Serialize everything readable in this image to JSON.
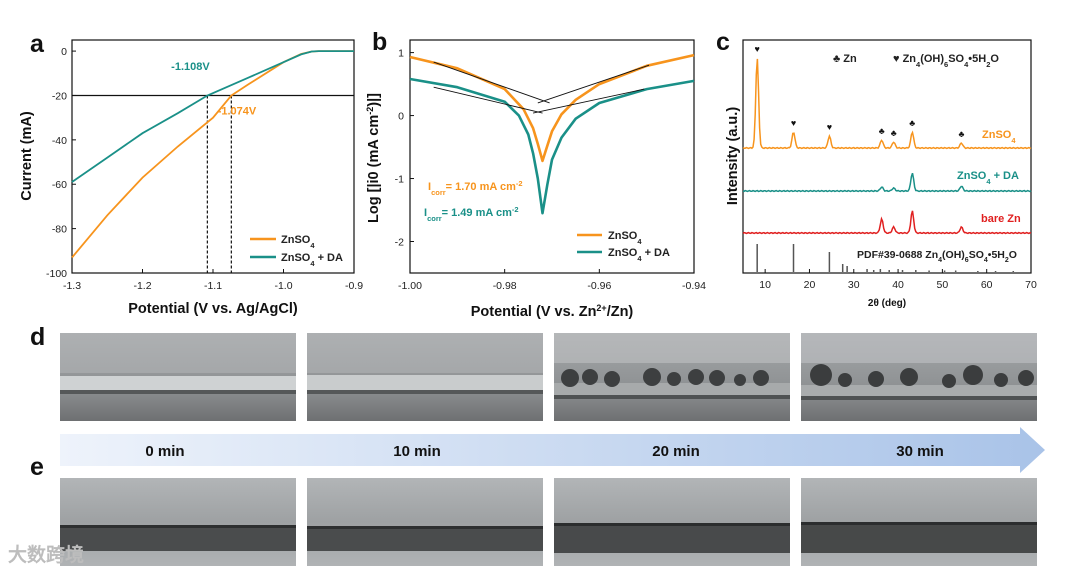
{
  "colors": {
    "orange": "#F7941D",
    "teal": "#1A9088",
    "red": "#E02020",
    "gray": "#555555",
    "arrow_start": "#EEF3FB",
    "arrow_end": "#A9C3E8"
  },
  "panel_labels": {
    "a": "a",
    "b": "b",
    "c": "c",
    "d": "d",
    "e": "e"
  },
  "chart_data": [
    {
      "panel": "a",
      "type": "line",
      "xlabel": "Potential (V vs. Ag/AgCl)",
      "ylabel": "Current (mA)",
      "xlim": [
        -1.3,
        -0.9
      ],
      "ylim": [
        -100,
        5
      ],
      "xticks": [
        -1.3,
        -1.2,
        -1.1,
        -1.0,
        -0.9
      ],
      "xtick_labels": [
        "-1.3",
        "-1.2",
        "-1.1",
        "-1.0",
        "-0.9"
      ],
      "yticks": [
        0,
        -20,
        -40,
        -60,
        -80,
        -100
      ],
      "ytick_labels": [
        "0",
        "-20",
        "-40",
        "-60",
        "-80",
        "-100"
      ],
      "series": [
        {
          "name": "ZnSO4",
          "color": "orange",
          "x": [
            -1.3,
            -1.25,
            -1.2,
            -1.15,
            -1.1,
            -1.074,
            -1.05,
            -1.0,
            -0.975,
            -0.96,
            -0.95,
            -0.93,
            -0.9
          ],
          "y": [
            -93,
            -74,
            -57,
            -43,
            -30,
            -20,
            -15,
            -5,
            -1.3,
            -0.2,
            0,
            0,
            0
          ]
        },
        {
          "name": "ZnSO4 + DA",
          "color": "teal",
          "x": [
            -1.3,
            -1.25,
            -1.2,
            -1.15,
            -1.108,
            -1.05,
            -1.0,
            -0.975,
            -0.96,
            -0.95,
            -0.93,
            -0.9
          ],
          "y": [
            -59,
            -48,
            -37,
            -28,
            -20,
            -12,
            -5,
            -1.5,
            -0.2,
            0,
            0,
            0
          ]
        }
      ],
      "reference_line_y": -20,
      "dashed_markers_x": [
        -1.108,
        -1.074
      ],
      "annotations": [
        {
          "text": "-1.108V",
          "color": "teal",
          "x": -1.132,
          "y": -8.5
        },
        {
          "text": "-1.074V",
          "color": "orange",
          "x": -1.066,
          "y": -28.5
        }
      ],
      "legend": {
        "position": "bottom-right",
        "entries": [
          "ZnSO4",
          "ZnSO4 + DA"
        ]
      }
    },
    {
      "panel": "b",
      "type": "line",
      "xlabel": "Potential (V vs. Zn2+/Zn)",
      "ylabel": "Log [|i0 (mA cm-2)|]",
      "xlim": [
        -1.0,
        -0.94
      ],
      "ylim": [
        -2.5,
        1.2
      ],
      "xticks": [
        -1.0,
        -0.98,
        -0.96,
        -0.94
      ],
      "xtick_labels": [
        "-1.00",
        "-0.98",
        "-0.96",
        "-0.94"
      ],
      "yticks": [
        1,
        0,
        -1,
        -2
      ],
      "ytick_labels": [
        "1",
        "0",
        "-1",
        "-2"
      ],
      "series": [
        {
          "name": "ZnSO4",
          "color": "orange",
          "x": [
            -1.0,
            -0.99,
            -0.98,
            -0.976,
            -0.974,
            -0.973,
            -0.972,
            -0.971,
            -0.97,
            -0.968,
            -0.965,
            -0.96,
            -0.95,
            -0.94
          ],
          "y": [
            0.93,
            0.75,
            0.42,
            0.1,
            -0.2,
            -0.45,
            -0.72,
            -0.48,
            -0.25,
            0.02,
            0.25,
            0.5,
            0.79,
            0.96
          ]
        },
        {
          "name": "ZnSO4 + DA",
          "color": "teal",
          "x": [
            -1.0,
            -0.99,
            -0.98,
            -0.977,
            -0.975,
            -0.974,
            -0.973,
            -0.972,
            -0.971,
            -0.97,
            -0.968,
            -0.965,
            -0.96,
            -0.95,
            -0.94
          ],
          "y": [
            0.58,
            0.45,
            0.22,
            0.0,
            -0.3,
            -0.6,
            -1.0,
            -1.55,
            -1.1,
            -0.7,
            -0.35,
            -0.05,
            0.2,
            0.42,
            0.55
          ]
        }
      ],
      "tafel_lines": [
        {
          "x": [
            -0.995,
            -0.9705
          ],
          "y": [
            0.85,
            0.2
          ]
        },
        {
          "x": [
            -0.973,
            -0.9495
          ],
          "y": [
            0.2,
            0.8
          ]
        },
        {
          "x": [
            -0.995,
            -0.972
          ],
          "y": [
            0.45,
            0.04
          ]
        },
        {
          "x": [
            -0.974,
            -0.9505
          ],
          "y": [
            0.04,
            0.42
          ]
        }
      ],
      "annotations": [
        {
          "label": "I",
          "sub": "corr",
          "value": "= 1.70 mA cm",
          "sup": "-2",
          "color": "orange"
        },
        {
          "label": "I",
          "sub": "corr",
          "value": "= 1.49 mA cm",
          "sup": "-2",
          "color": "teal"
        }
      ],
      "legend": {
        "position": "bottom-right",
        "entries": [
          "ZnSO4",
          "ZnSO4 + DA"
        ]
      }
    },
    {
      "panel": "c",
      "type": "line",
      "xlabel": "2θ (deg)",
      "ylabel": "Intensity (a.u.)",
      "xlim": [
        5,
        70
      ],
      "xticks": [
        10,
        20,
        30,
        40,
        50,
        60,
        70
      ],
      "xtick_labels": [
        "10",
        "20",
        "30",
        "40",
        "50",
        "60",
        "70"
      ],
      "legend_markers": [
        {
          "symbol": "♣",
          "text": "Zn"
        },
        {
          "symbol": "♥",
          "text": "Zn4(OH)6SO4•5H2O"
        }
      ],
      "series": [
        {
          "name": "ZnSO4",
          "color": "orange",
          "peaks": [
            [
              8.2,
              90
            ],
            [
              16.4,
              16
            ],
            [
              24.5,
              12
            ],
            [
              36.3,
              8
            ],
            [
              39.0,
              6
            ],
            [
              43.2,
              16
            ],
            [
              54.3,
              5
            ]
          ]
        },
        {
          "name": "ZnSO4 + DA",
          "color": "teal",
          "peaks": [
            [
              36.3,
              4
            ],
            [
              39.0,
              3
            ],
            [
              43.2,
              18
            ],
            [
              54.3,
              5
            ]
          ]
        },
        {
          "name": "bare Zn",
          "color": "red",
          "peaks": [
            [
              36.3,
              14
            ],
            [
              39.0,
              6
            ],
            [
              43.2,
              22
            ],
            [
              54.3,
              6
            ]
          ]
        }
      ],
      "reference": {
        "name": "PDF#39-0688 Zn4(OH)6SO4•5H2O",
        "color": "gray",
        "lines": [
          [
            8.2,
            28
          ],
          [
            16.4,
            28
          ],
          [
            24.5,
            20
          ],
          [
            27.5,
            8
          ],
          [
            28.5,
            6
          ],
          [
            33.0,
            3
          ],
          [
            34.5,
            2
          ],
          [
            36.0,
            3
          ],
          [
            38.0,
            2
          ],
          [
            41.0,
            2
          ],
          [
            44.0,
            2
          ],
          [
            47.0,
            1.5
          ],
          [
            50.5,
            1.5
          ],
          [
            53.0,
            1.5
          ],
          [
            58.0,
            1
          ],
          [
            62.0,
            1
          ],
          [
            66.0,
            1
          ]
        ]
      },
      "peak_markers": [
        {
          "symbol": "♥",
          "x": 8.2
        },
        {
          "symbol": "♥",
          "x": 16.4
        },
        {
          "symbol": "♥",
          "x": 24.5
        },
        {
          "symbol": "♣",
          "x": 36.3
        },
        {
          "symbol": "♣",
          "x": 39.0
        },
        {
          "symbol": "♣",
          "x": 43.2
        },
        {
          "symbol": "♣",
          "x": 54.3
        }
      ],
      "trace_labels": [
        "ZnSO4",
        "ZnSO4 + DA",
        "bare Zn",
        "PDF#39-0688 Zn4(OH)6SO4•5H2O"
      ]
    }
  ],
  "time_labels": [
    "0 min",
    "10 min",
    "20 min",
    "30 min"
  ],
  "watermark": "大数跨境"
}
